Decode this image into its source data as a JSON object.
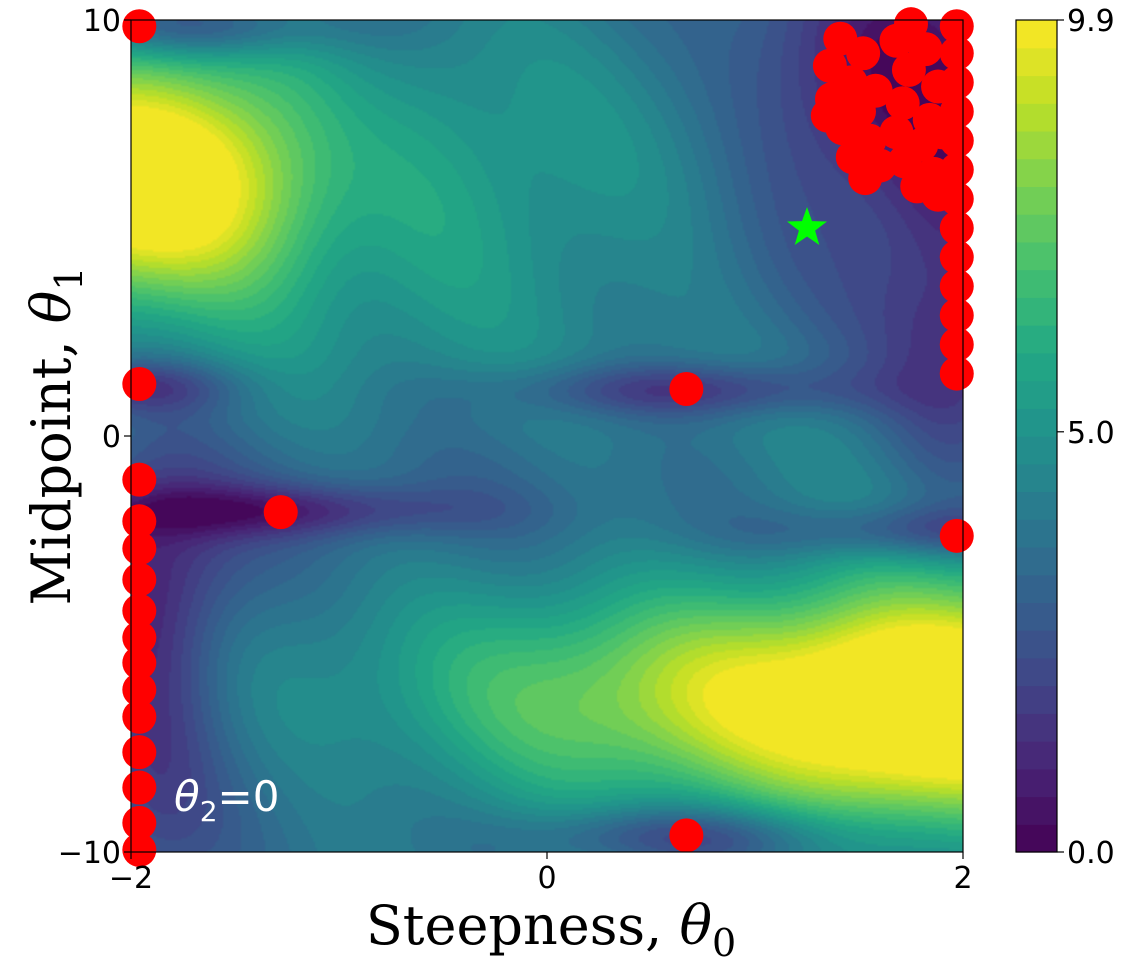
{
  "chart_data": {
    "type": "heatmap",
    "subtype": "filled-contour",
    "xlabel": "Steepness, θ0",
    "xlabel_parts": {
      "text": "Steepness, ",
      "symbol": "θ",
      "sub": "0"
    },
    "ylabel": "Midpoint, θ1",
    "ylabel_parts": {
      "text": "Midpoint, ",
      "symbol": "θ",
      "sub": "1"
    },
    "xlim": [
      -2,
      2
    ],
    "ylim": [
      -10,
      10
    ],
    "x_ticks": [
      {
        "value": -2,
        "label": "−2"
      },
      {
        "value": 0,
        "label": "0"
      },
      {
        "value": 2,
        "label": "2"
      }
    ],
    "y_ticks": [
      {
        "value": -10,
        "label": "−10"
      },
      {
        "value": 0,
        "label": "0"
      },
      {
        "value": 10,
        "label": "10"
      }
    ],
    "colorbar": {
      "colormap": "viridis",
      "range": [
        0.0,
        9.9
      ],
      "levels": 30,
      "ticks": [
        {
          "value": 0.0,
          "label": "0.0"
        },
        {
          "value": 5.0,
          "label": "5.0"
        },
        {
          "value": 9.9,
          "label": "9.9"
        }
      ]
    },
    "annotation": {
      "text": "θ2=0",
      "symbol": "θ",
      "sub": "2",
      "rest": "=0"
    },
    "field_features": {
      "minima": [
        {
          "x": -2.0,
          "y": 1.2
        },
        {
          "x": 0.65,
          "y": 1.1
        },
        {
          "x": -1.3,
          "y": -1.8
        },
        {
          "x": 1.95,
          "y": -2.3
        },
        {
          "x": 0.65,
          "y": -9.6
        },
        {
          "x": -1.85,
          "y": 9.9
        },
        {
          "x": 1.5,
          "y": 8.0
        }
      ],
      "maxima": [
        {
          "x": -2.0,
          "y": 5.8
        },
        {
          "x": 2.0,
          "y": -6.4
        }
      ]
    },
    "points": {
      "name": "samples",
      "color": "#ff0000",
      "values": [
        {
          "x": -1.96,
          "y": 9.85
        },
        {
          "x": -1.96,
          "y": 1.25
        },
        {
          "x": -1.96,
          "y": -1.05
        },
        {
          "x": -1.96,
          "y": -2.05
        },
        {
          "x": -1.96,
          "y": -2.7
        },
        {
          "x": -1.96,
          "y": -3.45
        },
        {
          "x": -1.96,
          "y": -4.2
        },
        {
          "x": -1.96,
          "y": -4.85
        },
        {
          "x": -1.96,
          "y": -5.45
        },
        {
          "x": -1.96,
          "y": -6.1
        },
        {
          "x": -1.96,
          "y": -6.75
        },
        {
          "x": -1.96,
          "y": -7.6
        },
        {
          "x": -1.96,
          "y": -8.45
        },
        {
          "x": -1.96,
          "y": -9.3
        },
        {
          "x": -1.96,
          "y": -9.95
        },
        {
          "x": -1.28,
          "y": -1.83
        },
        {
          "x": 0.67,
          "y": 1.13
        },
        {
          "x": 0.67,
          "y": -9.6
        },
        {
          "x": 1.97,
          "y": -2.4
        },
        {
          "x": 1.97,
          "y": 9.85
        },
        {
          "x": 1.97,
          "y": 9.2
        },
        {
          "x": 1.97,
          "y": 8.5
        },
        {
          "x": 1.97,
          "y": 7.8
        },
        {
          "x": 1.97,
          "y": 7.1
        },
        {
          "x": 1.97,
          "y": 6.4
        },
        {
          "x": 1.97,
          "y": 5.7
        },
        {
          "x": 1.97,
          "y": 5.0
        },
        {
          "x": 1.97,
          "y": 4.3
        },
        {
          "x": 1.97,
          "y": 3.6
        },
        {
          "x": 1.97,
          "y": 2.9
        },
        {
          "x": 1.97,
          "y": 2.2
        },
        {
          "x": 1.97,
          "y": 1.5
        },
        {
          "x": 1.41,
          "y": 9.55
        },
        {
          "x": 1.52,
          "y": 9.2
        },
        {
          "x": 1.36,
          "y": 8.9
        },
        {
          "x": 1.46,
          "y": 8.5
        },
        {
          "x": 1.58,
          "y": 8.3
        },
        {
          "x": 1.37,
          "y": 8.1
        },
        {
          "x": 1.5,
          "y": 7.8
        },
        {
          "x": 1.42,
          "y": 7.4
        },
        {
          "x": 1.55,
          "y": 7.1
        },
        {
          "x": 1.47,
          "y": 6.7
        },
        {
          "x": 1.6,
          "y": 6.5
        },
        {
          "x": 1.53,
          "y": 6.2
        },
        {
          "x": 1.35,
          "y": 7.7
        },
        {
          "x": 1.75,
          "y": 9.9
        },
        {
          "x": 1.68,
          "y": 9.5
        },
        {
          "x": 1.82,
          "y": 9.3
        },
        {
          "x": 1.74,
          "y": 8.8
        },
        {
          "x": 1.88,
          "y": 8.4
        },
        {
          "x": 1.71,
          "y": 8.0
        },
        {
          "x": 1.84,
          "y": 7.6
        },
        {
          "x": 1.68,
          "y": 7.3
        },
        {
          "x": 1.8,
          "y": 7.0
        },
        {
          "x": 1.72,
          "y": 6.6
        },
        {
          "x": 1.86,
          "y": 6.3
        },
        {
          "x": 1.78,
          "y": 6.0
        },
        {
          "x": 1.88,
          "y": 5.8
        },
        {
          "x": 1.9,
          "y": 7.3
        }
      ]
    },
    "best_point": {
      "name": "best",
      "x": 1.25,
      "y": 5.0,
      "color": "#00ff00",
      "marker": "star"
    }
  }
}
